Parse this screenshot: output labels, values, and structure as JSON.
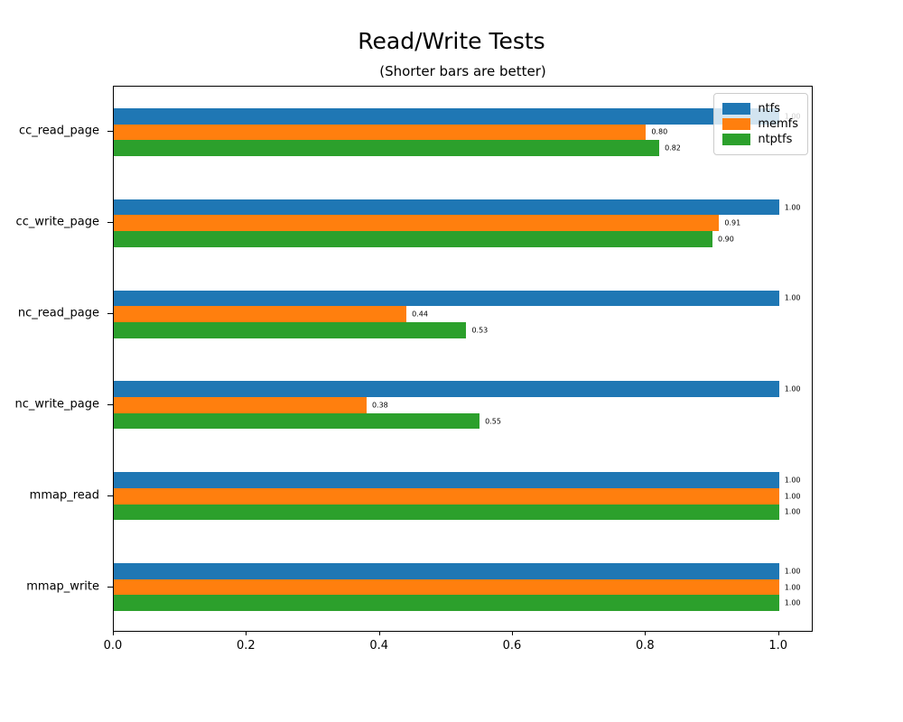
{
  "title": "Read/Write Tests",
  "subtitle": "(Shorter bars are better)",
  "chart_data": {
    "type": "bar",
    "orientation": "horizontal",
    "title": "Read/Write Tests",
    "subtitle": "(Shorter bars are better)",
    "categories": [
      "cc_read_page",
      "cc_write_page",
      "nc_read_page",
      "nc_write_page",
      "mmap_read",
      "mmap_write"
    ],
    "series": [
      {
        "name": "ntfs",
        "color": "#1f77b4",
        "values": [
          1.0,
          1.0,
          1.0,
          1.0,
          1.0,
          1.0
        ]
      },
      {
        "name": "memfs",
        "color": "#ff7f0e",
        "values": [
          0.8,
          0.91,
          0.44,
          0.38,
          1.0,
          1.0
        ]
      },
      {
        "name": "ntptfs",
        "color": "#2ca02c",
        "values": [
          0.82,
          0.9,
          0.53,
          0.55,
          1.0,
          1.0
        ]
      }
    ],
    "bar_value_labels": true,
    "value_label_decimals": 2,
    "xlim": [
      0,
      1.052
    ],
    "xticks": [
      0.0,
      0.2,
      0.4,
      0.6,
      0.8,
      1.0
    ],
    "xtick_labels": [
      "0.0",
      "0.2",
      "0.4",
      "0.6",
      "0.8",
      "1.0"
    ],
    "ylabel": "",
    "xlabel": "",
    "grid": false,
    "legend_position": "upper right"
  }
}
